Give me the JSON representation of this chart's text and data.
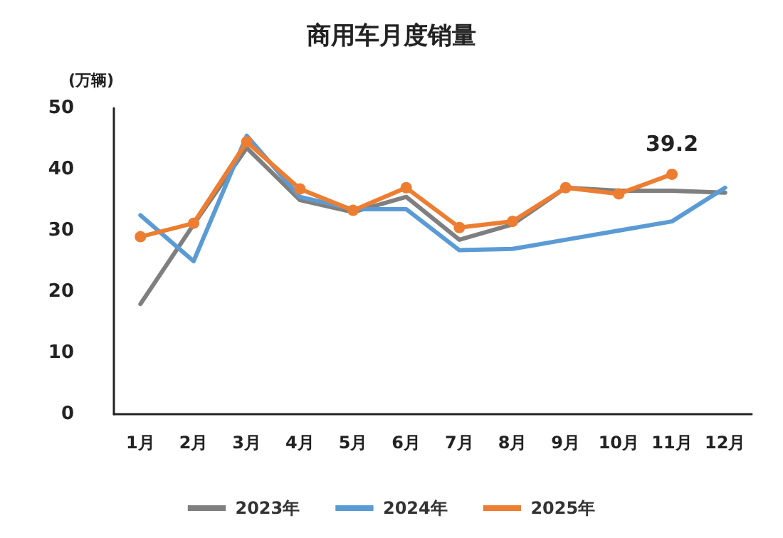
{
  "chart_data": {
    "type": "line",
    "title": "商用车月度销量",
    "ylabel": "(万辆)",
    "categories": [
      "1月",
      "2月",
      "3月",
      "4月",
      "5月",
      "6月",
      "7月",
      "8月",
      "9月",
      "10月",
      "11月",
      "12月"
    ],
    "series": [
      {
        "name": "2023年",
        "color": "#7f7f7f",
        "marker": "none",
        "values": [
          18,
          31,
          43.5,
          35,
          33,
          35.5,
          28.5,
          31,
          37,
          36.5,
          36.5,
          36.2
        ]
      },
      {
        "name": "2024年",
        "color": "#5b9bd5",
        "marker": "none",
        "values": [
          32.5,
          25,
          45.5,
          35.5,
          33.5,
          33.5,
          26.8,
          27,
          28.5,
          30,
          31.5,
          37
        ]
      },
      {
        "name": "2025年",
        "color": "#ed7d31",
        "marker": "circle",
        "values": [
          29,
          31.2,
          44.5,
          36.8,
          33.3,
          37,
          30.5,
          31.5,
          37,
          36,
          39.2,
          null
        ],
        "value_labels": [
          null,
          null,
          null,
          null,
          null,
          null,
          null,
          null,
          null,
          null,
          "39.2",
          null
        ]
      }
    ],
    "ylim": [
      0,
      50
    ],
    "yticks": [
      0,
      10,
      20,
      30,
      40,
      50
    ],
    "grid": false,
    "legend": "bottom",
    "line_style": "solid"
  }
}
